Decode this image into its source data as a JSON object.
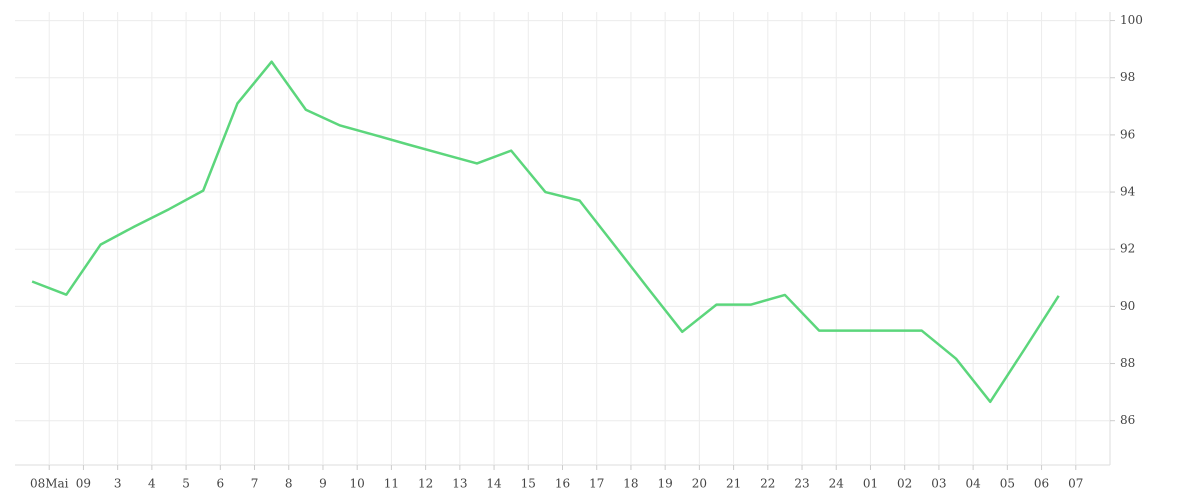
{
  "chart_data": {
    "type": "line",
    "x": [
      0.5,
      1.5,
      2.5,
      3.5,
      4.5,
      5.5,
      6.5,
      7.5,
      8.5,
      9.5,
      10.5,
      11.5,
      12.5,
      13.5,
      14.5,
      15.5,
      16.5,
      17.5,
      18.5,
      19.5,
      20.5,
      21.5,
      22.5,
      23.5,
      24.5,
      25.5,
      26.5,
      27.5,
      28.5,
      29.5,
      30.5
    ],
    "series": [
      {
        "color": "#5cd67c",
        "values": [
          90.87,
          90.41,
          92.16,
          92.8,
          93.4,
          94.05,
          97.1,
          98.56,
          96.88,
          96.33,
          96.0,
          95.66,
          95.33,
          95.0,
          95.45,
          94.0,
          93.7,
          92.17,
          90.63,
          89.11,
          90.06,
          90.06,
          90.4,
          89.15,
          89.15,
          89.15,
          89.15,
          88.17,
          86.66,
          88.5,
          90.37
        ]
      }
    ],
    "xlim": [
      0,
      32
    ],
    "xticks": [
      {
        "value": 1,
        "label": "08Mai"
      },
      {
        "value": 2,
        "label": "09"
      },
      3,
      4,
      5,
      6,
      7,
      8,
      9,
      10,
      11,
      12,
      13,
      14,
      15,
      16,
      17,
      18,
      19,
      20,
      21,
      22,
      23,
      24,
      {
        "value": 25,
        "label": "01"
      },
      {
        "value": 26,
        "label": "02"
      },
      {
        "value": 27,
        "label": "03"
      },
      {
        "value": 28,
        "label": "04"
      },
      {
        "value": 29,
        "label": "05"
      },
      {
        "value": 30,
        "label": "06"
      },
      {
        "value": 31,
        "label": "07"
      }
    ],
    "ylim": [
      84.45,
      100.3
    ],
    "yticks": [
      86,
      88,
      90,
      92,
      94,
      96,
      98,
      100
    ],
    "grid": true
  }
}
